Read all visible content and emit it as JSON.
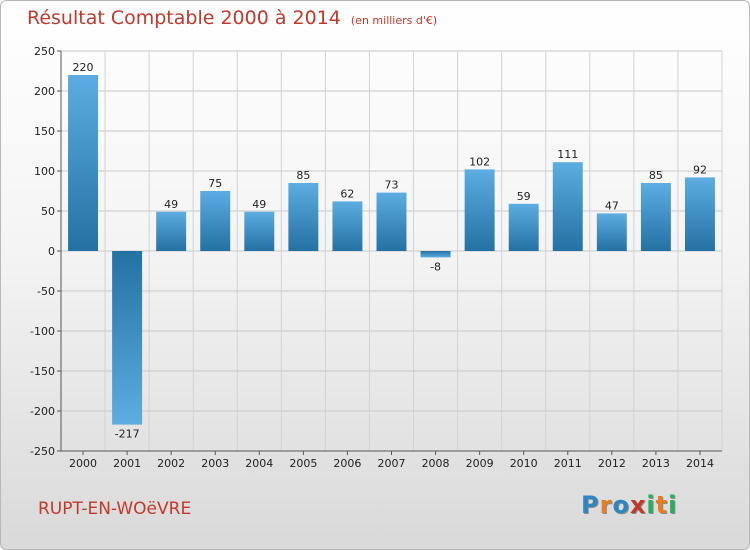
{
  "chart_data": {
    "type": "bar",
    "title": "Résultat Comptable 2000 à 2014",
    "subtitle": "(en milliers d'€)",
    "categories": [
      "2000",
      "2001",
      "2002",
      "2003",
      "2004",
      "2005",
      "2006",
      "2007",
      "2008",
      "2009",
      "2010",
      "2011",
      "2012",
      "2013",
      "2014"
    ],
    "values": [
      220,
      -217,
      49,
      75,
      49,
      85,
      62,
      73,
      -8,
      102,
      59,
      111,
      47,
      85,
      92
    ],
    "ylim": [
      -250,
      250
    ],
    "yticks": [
      250,
      200,
      150,
      100,
      50,
      0,
      -50,
      -100,
      -150,
      -200,
      -250
    ],
    "ytick_labels": [
      "250",
      "200",
      "150",
      "100",
      "50",
      "0",
      "-50",
      "-100",
      "-150",
      "-200",
      "-250"
    ],
    "value_labels": [
      "220",
      "-217",
      "49",
      "75",
      "49",
      "85",
      "62",
      "73",
      "-8",
      "102",
      "59",
      "111",
      "47",
      "85",
      "92"
    ],
    "grid": true,
    "colors": {
      "bar_light": "#5dade2",
      "bar_dark": "#2471a3",
      "title": "#c0392b"
    }
  },
  "footer": {
    "city": "RUPT-EN-WOëVRE",
    "logo_text": "Proxiti"
  }
}
